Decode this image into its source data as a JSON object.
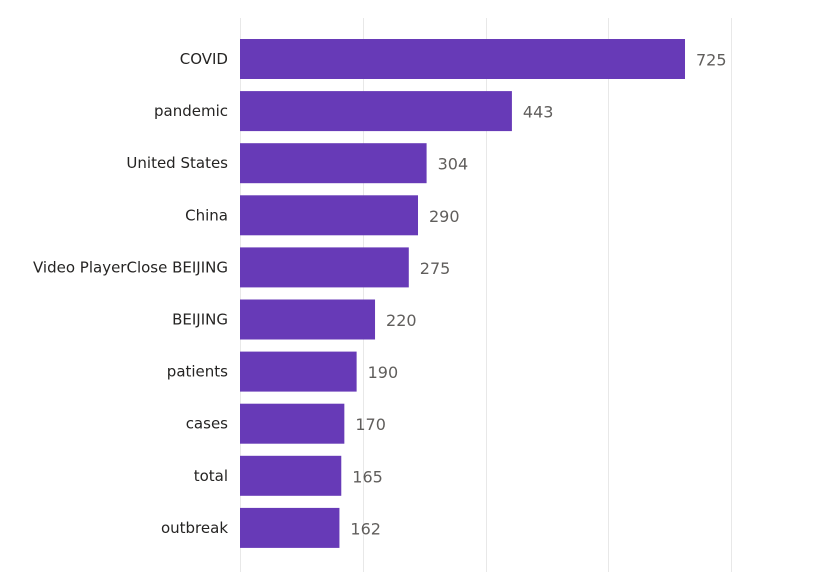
{
  "chart_data": {
    "type": "bar",
    "orientation": "horizontal",
    "categories": [
      "COVID",
      "pandemic",
      "United States",
      "China",
      "Video PlayerClose BEIJING",
      "BEIJING",
      "patients",
      "cases",
      "total",
      "outbreak"
    ],
    "values": [
      725,
      443,
      304,
      290,
      275,
      220,
      190,
      170,
      165,
      162
    ],
    "data_labels": [
      "725",
      "443",
      "304",
      "290",
      "275",
      "220",
      "190",
      "170",
      "165",
      "162"
    ],
    "xlim": [
      0,
      800
    ],
    "grid": true,
    "bar_color": "#673ab7"
  }
}
